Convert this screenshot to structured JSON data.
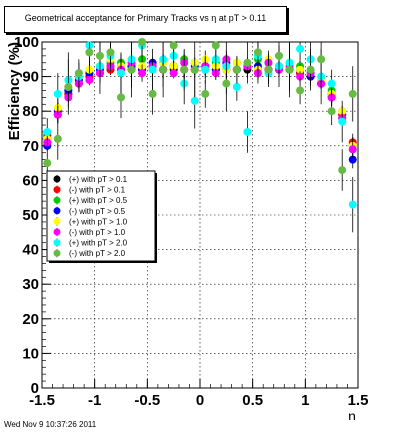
{
  "chart_data": {
    "type": "scatter",
    "title": "Geometrical acceptance for Primary Tracks vs    η at pT > 0.11",
    "xlabel": "η",
    "ylabel": "Efficiency (%)",
    "xlim": [
      -1.5,
      1.5
    ],
    "ylim": [
      0,
      100
    ],
    "x_ticks": [
      -1.5,
      -1,
      -0.5,
      0,
      0.5,
      1,
      1.5
    ],
    "x_tick_labels": [
      "-1.5",
      "-1",
      "-0.5",
      "0",
      "0.5",
      "1",
      "1.5"
    ],
    "y_ticks": [
      0,
      10,
      20,
      30,
      40,
      50,
      60,
      70,
      80,
      90,
      100
    ],
    "y_tick_labels": [
      "0",
      "10",
      "20",
      "30",
      "40",
      "50",
      "60",
      "70",
      "80",
      "90",
      "100"
    ],
    "grid": true,
    "legend_position": "left-middle",
    "series": [
      {
        "name": "(+) with pT > 0.1",
        "color": "#000000",
        "x": [
          -1.45,
          -1.35,
          -1.25,
          -1.15,
          -1.05,
          -0.95,
          -0.85,
          -0.75,
          -0.65,
          -0.55,
          -0.45,
          -0.35,
          -0.25,
          -0.15,
          -0.05,
          0.05,
          0.15,
          0.25,
          0.35,
          0.45,
          0.55,
          0.65,
          0.75,
          0.85,
          0.95,
          1.05,
          1.15,
          1.25,
          1.35,
          1.45
        ],
        "y": [
          72,
          79,
          85,
          88,
          90,
          91,
          92,
          92,
          92,
          92,
          92,
          92,
          92,
          92,
          92,
          92,
          92,
          92,
          92,
          92,
          92,
          92,
          92,
          92,
          91,
          90,
          88,
          85,
          79,
          70
        ]
      },
      {
        "name": "(-) with pT > 0.1",
        "color": "#ff0000",
        "x": [
          -1.45,
          -1.35,
          -1.25,
          -1.15,
          -1.05,
          -0.95,
          -0.85,
          -0.75,
          -0.65,
          -0.55,
          -0.45,
          -0.35,
          -0.25,
          -0.15,
          -0.05,
          0.05,
          0.15,
          0.25,
          0.35,
          0.45,
          0.55,
          0.65,
          0.75,
          0.85,
          0.95,
          1.05,
          1.15,
          1.25,
          1.35,
          1.45
        ],
        "y": [
          73,
          79,
          85,
          88,
          90,
          91,
          92,
          92,
          93,
          92,
          92,
          92,
          93,
          92,
          92,
          93,
          92,
          92,
          92,
          93,
          92,
          92,
          93,
          92,
          91,
          90,
          88,
          85,
          79,
          71
        ]
      },
      {
        "name": "(+) with pT > 0.5",
        "color": "#00cc00",
        "x": [
          -1.45,
          -1.35,
          -1.25,
          -1.15,
          -1.05,
          -0.95,
          -0.85,
          -0.75,
          -0.65,
          -0.55,
          -0.45,
          -0.35,
          -0.25,
          -0.15,
          -0.05,
          0.05,
          0.15,
          0.25,
          0.35,
          0.45,
          0.55,
          0.65,
          0.75,
          0.85,
          0.95,
          1.05,
          1.15,
          1.25,
          1.35,
          1.45
        ],
        "y": [
          71,
          80,
          86,
          89,
          91,
          93,
          94,
          94,
          93,
          95,
          93,
          94,
          93,
          95,
          94,
          93,
          94,
          93,
          94,
          93,
          95,
          94,
          93,
          94,
          93,
          91,
          89,
          86,
          80,
          69
        ]
      },
      {
        "name": "(-) with pT > 0.5",
        "color": "#0000ff",
        "x": [
          -1.45,
          -1.35,
          -1.25,
          -1.15,
          -1.05,
          -0.95,
          -0.85,
          -0.75,
          -0.65,
          -0.55,
          -0.45,
          -0.35,
          -0.25,
          -0.15,
          -0.05,
          0.05,
          0.15,
          0.25,
          0.35,
          0.45,
          0.55,
          0.65,
          0.75,
          0.85,
          0.95,
          1.05,
          1.15,
          1.25,
          1.35,
          1.45
        ],
        "y": [
          70,
          80,
          86,
          89,
          91,
          92,
          93,
          93,
          93,
          92,
          94,
          92,
          93,
          92,
          93,
          93,
          92,
          94,
          92,
          93,
          93,
          92,
          93,
          92,
          92,
          90,
          88,
          84,
          78,
          66
        ]
      },
      {
        "name": "(+) with pT > 1.0",
        "color": "#ffff00",
        "x": [
          -1.45,
          -1.35,
          -1.25,
          -1.15,
          -1.05,
          -0.95,
          -0.85,
          -0.75,
          -0.65,
          -0.55,
          -0.45,
          -0.35,
          -0.25,
          -0.15,
          -0.05,
          0.05,
          0.15,
          0.25,
          0.35,
          0.45,
          0.55,
          0.65,
          0.75,
          0.85,
          0.95,
          1.05,
          1.15,
          1.25,
          1.35,
          1.45
        ],
        "y": [
          72,
          81,
          87,
          90,
          92,
          93,
          95,
          93,
          94,
          93,
          92,
          94,
          93,
          92,
          94,
          95,
          93,
          92,
          94,
          93,
          92,
          95,
          93,
          94,
          92,
          91,
          89,
          85,
          80,
          70
        ]
      },
      {
        "name": "(-) with pT > 1.0",
        "color": "#ff00ff",
        "x": [
          -1.45,
          -1.35,
          -1.25,
          -1.15,
          -1.05,
          -0.95,
          -0.85,
          -0.75,
          -0.65,
          -0.55,
          -0.45,
          -0.35,
          -0.25,
          -0.15,
          -0.05,
          0.05,
          0.15,
          0.25,
          0.35,
          0.45,
          0.55,
          0.65,
          0.75,
          0.85,
          0.95,
          1.05,
          1.15,
          1.25,
          1.35,
          1.45
        ],
        "y": [
          71,
          79,
          84,
          88,
          89,
          91,
          93,
          92,
          94,
          91,
          93,
          92,
          91,
          94,
          92,
          93,
          91,
          95,
          92,
          93,
          91,
          94,
          92,
          93,
          90,
          91,
          88,
          84,
          78,
          69
        ]
      },
      {
        "name": "(+) with pT > 2.0",
        "color": "#00ffff",
        "x": [
          -1.45,
          -1.35,
          -1.25,
          -1.15,
          -1.05,
          -0.95,
          -0.85,
          -0.75,
          -0.65,
          -0.55,
          -0.45,
          -0.35,
          -0.25,
          -0.15,
          -0.05,
          0.05,
          0.15,
          0.25,
          0.35,
          0.45,
          0.55,
          0.65,
          0.75,
          0.85,
          0.95,
          1.05,
          1.15,
          1.25,
          1.35,
          1.45
        ],
        "y": [
          74,
          85,
          89,
          90,
          99,
          93,
          96,
          91,
          95,
          99,
          92,
          95,
          96,
          88,
          83,
          92,
          95,
          93,
          87,
          74,
          96,
          91,
          93,
          94,
          98,
          95,
          90,
          88,
          77,
          53
        ]
      },
      {
        "name": "(-) with pT > 2.0",
        "color": "#66bb44",
        "x": [
          -1.45,
          -1.35,
          -1.25,
          -1.15,
          -1.05,
          -0.95,
          -0.85,
          -0.75,
          -0.65,
          -0.55,
          -0.45,
          -0.35,
          -0.25,
          -0.15,
          -0.05,
          0.05,
          0.15,
          0.25,
          0.35,
          0.45,
          0.55,
          0.65,
          0.75,
          0.85,
          0.95,
          1.05,
          1.15,
          1.25,
          1.35,
          1.45
        ],
        "y": [
          65,
          72,
          87,
          91,
          97,
          96,
          97,
          84,
          92,
          100,
          85,
          92,
          99,
          92,
          92,
          85,
          99,
          88,
          92,
          94,
          97,
          92,
          96,
          92,
          86,
          92,
          95,
          80,
          63,
          85
        ]
      }
    ]
  },
  "footer": {
    "timestamp": "Wed Nov  9 10:37:26 2011"
  }
}
